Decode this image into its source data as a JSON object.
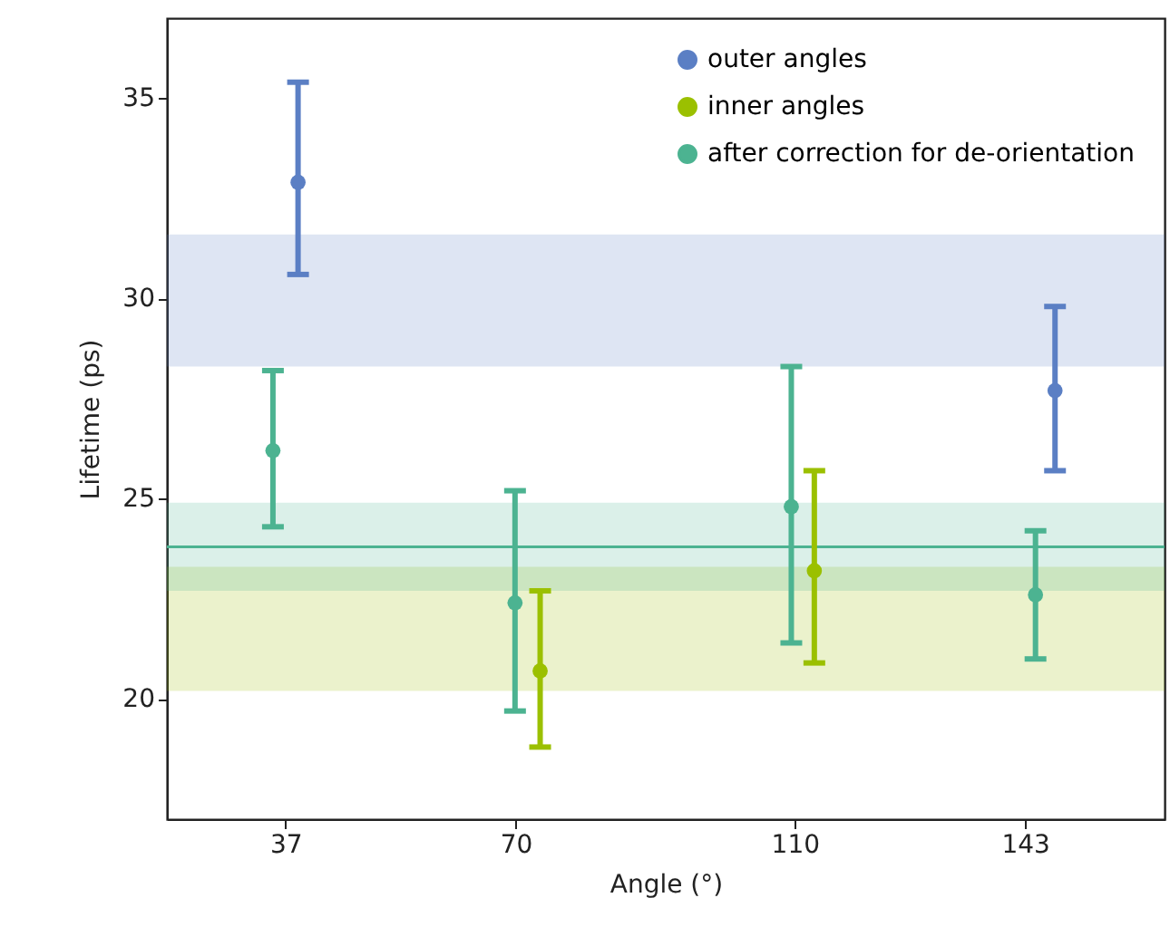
{
  "chart_data": {
    "type": "scatter",
    "xlabel": "Angle (°)",
    "ylabel": "Lifetime (ps)",
    "xlim": [
      20,
      163
    ],
    "xticks": [
      37,
      70,
      110,
      143
    ],
    "ylim": [
      17,
      37
    ],
    "yticks": [
      20,
      25,
      30,
      35
    ],
    "grid": false,
    "legend": "top right",
    "marker": "circle",
    "series": [
      {
        "name": "outer angles",
        "color": "#5b7fc4",
        "x": [
          38.8,
          147.3
        ],
        "values": [
          32.9,
          27.7
        ],
        "errors": [
          [
            30.6,
            35.4
          ],
          [
            25.7,
            29.8
          ]
        ]
      },
      {
        "name": "inner angles",
        "color": "#9bc000",
        "x": [
          73.5,
          112.8
        ],
        "values": [
          20.7,
          23.2
        ],
        "errors": [
          [
            18.8,
            22.7
          ],
          [
            20.9,
            25.7
          ]
        ]
      },
      {
        "name": "after correction for de-orientation",
        "color": "#4cb391",
        "x": [
          35.2,
          69.9,
          109.5,
          144.5
        ],
        "values": [
          26.2,
          22.4,
          24.8,
          22.6
        ],
        "errors": [
          [
            24.3,
            28.2
          ],
          [
            19.7,
            25.2
          ],
          [
            21.4,
            28.3
          ],
          [
            21.0,
            24.2
          ]
        ]
      }
    ],
    "bands": [
      {
        "axis": "y",
        "from": 28.3,
        "to": 31.6,
        "color": "#5b7fc4"
      },
      {
        "axis": "y",
        "from": 20.2,
        "to": 23.3,
        "color": "#9bc000"
      },
      {
        "axis": "y",
        "from": 22.7,
        "to": 24.9,
        "color": "#4cb391"
      }
    ],
    "ref_lines": [
      {
        "axis": "y",
        "value": 23.8,
        "color": "#4cb391"
      }
    ]
  }
}
